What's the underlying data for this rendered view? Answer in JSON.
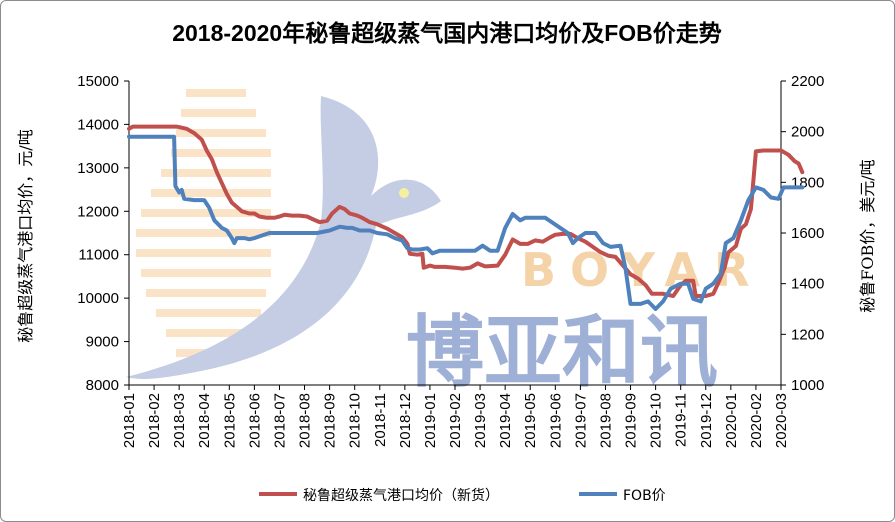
{
  "chart_data": {
    "type": "line",
    "title": "2018-2020年秘鲁超级蒸气国内港口均价及FOB价走势",
    "ylabel_left": "秘鲁超级蒸气港口均价，元/吨",
    "ylabel_right": "秘鲁FOB价，美元/吨",
    "ylim_left": [
      8000,
      15000
    ],
    "ylim_right": [
      1000,
      2200
    ],
    "yticks_left": [
      "8000",
      "9000",
      "10000",
      "11000",
      "12000",
      "13000",
      "14000",
      "15000"
    ],
    "yticks_right": [
      "1000",
      "1200",
      "1400",
      "1600",
      "1800",
      "2000",
      "2200"
    ],
    "categories": [
      "2018-01",
      "2018-02",
      "2018-03",
      "2018-04",
      "2018-05",
      "2018-06",
      "2018-07",
      "2018-08",
      "2018-09",
      "2018-10",
      "2018-11",
      "2018-12",
      "2019-01",
      "2019-02",
      "2019-03",
      "2019-04",
      "2019-05",
      "2019-06",
      "2019-07",
      "2019-08",
      "2019-09",
      "2019-10",
      "2019-11",
      "2019-12",
      "2020-01",
      "2020-02",
      "2020-03"
    ],
    "legend_position": "bottom",
    "grid": false,
    "series": [
      {
        "name": "秘鲁超级蒸气港口均价（新货）",
        "axis": "left",
        "color": "#c0504d",
        "points": [
          [
            0,
            13900
          ],
          [
            0.15,
            13950
          ],
          [
            1,
            13950
          ],
          [
            1.5,
            13950
          ],
          [
            1.9,
            13950
          ],
          [
            2.3,
            13900
          ],
          [
            2.6,
            13800
          ],
          [
            2.9,
            13650
          ],
          [
            3.1,
            13400
          ],
          [
            3.3,
            13200
          ],
          [
            3.5,
            12900
          ],
          [
            3.7,
            12650
          ],
          [
            3.9,
            12400
          ],
          [
            4.1,
            12200
          ],
          [
            4.3,
            12100
          ],
          [
            4.5,
            12000
          ],
          [
            4.8,
            11950
          ],
          [
            5.0,
            11950
          ],
          [
            5.2,
            11880
          ],
          [
            5.5,
            11850
          ],
          [
            5.8,
            11850
          ],
          [
            6.0,
            11880
          ],
          [
            6.2,
            11920
          ],
          [
            6.5,
            11900
          ],
          [
            6.8,
            11900
          ],
          [
            7.1,
            11880
          ],
          [
            7.4,
            11800
          ],
          [
            7.6,
            11750
          ],
          [
            7.9,
            11780
          ],
          [
            8.1,
            11950
          ],
          [
            8.4,
            12100
          ],
          [
            8.6,
            12050
          ],
          [
            8.8,
            11950
          ],
          [
            9.1,
            11900
          ],
          [
            9.3,
            11850
          ],
          [
            9.6,
            11750
          ],
          [
            9.9,
            11700
          ],
          [
            10.3,
            11600
          ],
          [
            10.6,
            11500
          ],
          [
            10.9,
            11400
          ],
          [
            11.1,
            11250
          ],
          [
            11.2,
            11020
          ],
          [
            11.5,
            11000
          ],
          [
            11.7,
            11020
          ],
          [
            11.75,
            10700
          ],
          [
            12.0,
            10750
          ],
          [
            12.2,
            10720
          ],
          [
            12.6,
            10720
          ],
          [
            13.0,
            10700
          ],
          [
            13.3,
            10680
          ],
          [
            13.6,
            10700
          ],
          [
            13.9,
            10800
          ],
          [
            14.2,
            10730
          ],
          [
            14.7,
            10750
          ],
          [
            15.0,
            11000
          ],
          [
            15.3,
            11350
          ],
          [
            15.6,
            11250
          ],
          [
            15.9,
            11250
          ],
          [
            16.2,
            11330
          ],
          [
            16.5,
            11300
          ],
          [
            16.8,
            11400
          ],
          [
            17.0,
            11460
          ],
          [
            17.3,
            11480
          ],
          [
            17.6,
            11480
          ],
          [
            17.9,
            11380
          ],
          [
            18.2,
            11300
          ],
          [
            18.5,
            11180
          ],
          [
            18.8,
            11060
          ],
          [
            19.1,
            10980
          ],
          [
            19.4,
            10950
          ],
          [
            19.7,
            10750
          ],
          [
            20.0,
            10550
          ],
          [
            20.3,
            10450
          ],
          [
            20.6,
            10300
          ],
          [
            20.85,
            10100
          ],
          [
            21.3,
            10100
          ],
          [
            21.7,
            10050
          ],
          [
            22.0,
            10300
          ],
          [
            22.2,
            10400
          ],
          [
            22.5,
            10400
          ],
          [
            22.6,
            10050
          ],
          [
            23.0,
            10050
          ],
          [
            23.3,
            10100
          ],
          [
            23.5,
            10350
          ],
          [
            23.75,
            10700
          ],
          [
            23.9,
            11050
          ],
          [
            24.2,
            11200
          ],
          [
            24.4,
            11600
          ],
          [
            24.6,
            11700
          ],
          [
            24.8,
            12050
          ],
          [
            25.0,
            13380
          ],
          [
            25.3,
            13400
          ],
          [
            25.8,
            13400
          ],
          [
            26.0,
            13400
          ],
          [
            26.3,
            13300
          ],
          [
            26.55,
            13150
          ],
          [
            26.7,
            13100
          ],
          [
            26.85,
            12900
          ]
        ]
      },
      {
        "name": "FOB价",
        "axis": "right",
        "color": "#4f81bd",
        "points": [
          [
            0,
            1980
          ],
          [
            0.5,
            1980
          ],
          [
            1.0,
            1980
          ],
          [
            1.6,
            1980
          ],
          [
            1.8,
            1980
          ],
          [
            1.85,
            1785
          ],
          [
            2.0,
            1760
          ],
          [
            2.1,
            1770
          ],
          [
            2.2,
            1735
          ],
          [
            2.6,
            1730
          ],
          [
            3.0,
            1730
          ],
          [
            3.2,
            1700
          ],
          [
            3.4,
            1650
          ],
          [
            3.7,
            1620
          ],
          [
            3.9,
            1610
          ],
          [
            4.1,
            1580
          ],
          [
            4.2,
            1560
          ],
          [
            4.3,
            1580
          ],
          [
            4.6,
            1580
          ],
          [
            4.8,
            1575
          ],
          [
            5.0,
            1580
          ],
          [
            5.3,
            1590
          ],
          [
            5.6,
            1600
          ],
          [
            6.0,
            1600
          ],
          [
            6.5,
            1600
          ],
          [
            7.0,
            1600
          ],
          [
            7.5,
            1600
          ],
          [
            8.0,
            1610
          ],
          [
            8.4,
            1625
          ],
          [
            8.7,
            1620
          ],
          [
            8.9,
            1620
          ],
          [
            9.2,
            1610
          ],
          [
            9.6,
            1610
          ],
          [
            9.9,
            1600
          ],
          [
            10.3,
            1595
          ],
          [
            10.6,
            1580
          ],
          [
            10.9,
            1570
          ],
          [
            11.1,
            1540
          ],
          [
            11.3,
            1535
          ],
          [
            11.6,
            1535
          ],
          [
            11.9,
            1540
          ],
          [
            12.1,
            1520
          ],
          [
            12.4,
            1530
          ],
          [
            12.7,
            1530
          ],
          [
            13.0,
            1530
          ],
          [
            13.4,
            1530
          ],
          [
            13.8,
            1530
          ],
          [
            14.1,
            1550
          ],
          [
            14.4,
            1530
          ],
          [
            14.7,
            1530
          ],
          [
            15.0,
            1620
          ],
          [
            15.3,
            1675
          ],
          [
            15.6,
            1650
          ],
          [
            15.8,
            1660
          ],
          [
            16.2,
            1660
          ],
          [
            16.6,
            1660
          ],
          [
            16.9,
            1640
          ],
          [
            17.2,
            1620
          ],
          [
            17.5,
            1600
          ],
          [
            17.7,
            1560
          ],
          [
            17.9,
            1580
          ],
          [
            18.2,
            1600
          ],
          [
            18.6,
            1600
          ],
          [
            18.9,
            1560
          ],
          [
            19.2,
            1545
          ],
          [
            19.6,
            1550
          ],
          [
            19.8,
            1460
          ],
          [
            20.0,
            1320
          ],
          [
            20.4,
            1320
          ],
          [
            20.7,
            1330
          ],
          [
            21.0,
            1300
          ],
          [
            21.3,
            1330
          ],
          [
            21.6,
            1380
          ],
          [
            21.8,
            1390
          ],
          [
            22.0,
            1400
          ],
          [
            22.3,
            1400
          ],
          [
            22.5,
            1340
          ],
          [
            22.8,
            1330
          ],
          [
            23.0,
            1380
          ],
          [
            23.3,
            1400
          ],
          [
            23.6,
            1440
          ],
          [
            23.8,
            1560
          ],
          [
            24.1,
            1580
          ],
          [
            24.4,
            1650
          ],
          [
            24.7,
            1730
          ],
          [
            25.0,
            1780
          ],
          [
            25.3,
            1770
          ],
          [
            25.6,
            1740
          ],
          [
            25.9,
            1735
          ],
          [
            26.1,
            1780
          ],
          [
            26.6,
            1780
          ],
          [
            26.85,
            1780
          ]
        ]
      }
    ]
  },
  "watermark": {
    "latin": "BOYAR",
    "cjk": "博亚和讯"
  }
}
